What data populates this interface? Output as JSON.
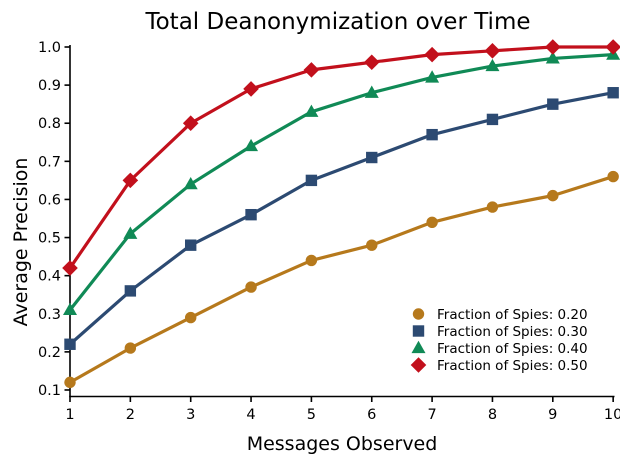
{
  "page": {
    "background": "#ffffff",
    "text_color": "#000000"
  },
  "chart_data": {
    "type": "line",
    "title": "Total Deanonymization over Time",
    "xlabel": "Messages Observed",
    "ylabel": "Average Precision",
    "x": [
      1,
      2,
      3,
      4,
      5,
      6,
      7,
      8,
      9,
      10
    ],
    "x_tick_labels": [
      "1",
      "2",
      "3",
      "4",
      "5",
      "6",
      "7",
      "8",
      "9",
      "10"
    ],
    "y_ticks": [
      0.1,
      0.2,
      0.3,
      0.4,
      0.5,
      0.6,
      0.7,
      0.8,
      0.9,
      1.0
    ],
    "y_tick_labels": [
      "0.1",
      "0.2",
      "0.3",
      "0.4",
      "0.5",
      "0.6",
      "0.7",
      "0.8",
      "0.9",
      "1.0"
    ],
    "xlim": [
      1,
      10.05
    ],
    "ylim": [
      0.085,
      1.0
    ],
    "grid": false,
    "legend": {
      "position": "inside lower right",
      "frame": false
    },
    "series": [
      {
        "name": "Fraction of Spies: 0.20",
        "color": "#B6791C",
        "marker": "circle",
        "values": [
          0.12,
          0.21,
          0.29,
          0.37,
          0.44,
          0.48,
          0.54,
          0.58,
          0.61,
          0.66
        ]
      },
      {
        "name": "Fraction of Spies: 0.30",
        "color": "#2C4A72",
        "marker": "square",
        "values": [
          0.22,
          0.36,
          0.48,
          0.56,
          0.65,
          0.71,
          0.77,
          0.81,
          0.85,
          0.88
        ]
      },
      {
        "name": "Fraction of Spies: 0.40",
        "color": "#108A56",
        "marker": "triangle",
        "values": [
          0.31,
          0.51,
          0.64,
          0.74,
          0.83,
          0.88,
          0.92,
          0.95,
          0.97,
          0.98
        ]
      },
      {
        "name": "Fraction of Spies: 0.50",
        "color": "#C2101C",
        "marker": "diamond",
        "values": [
          0.42,
          0.65,
          0.8,
          0.89,
          0.94,
          0.96,
          0.98,
          0.99,
          1.0,
          1.0
        ]
      }
    ]
  }
}
